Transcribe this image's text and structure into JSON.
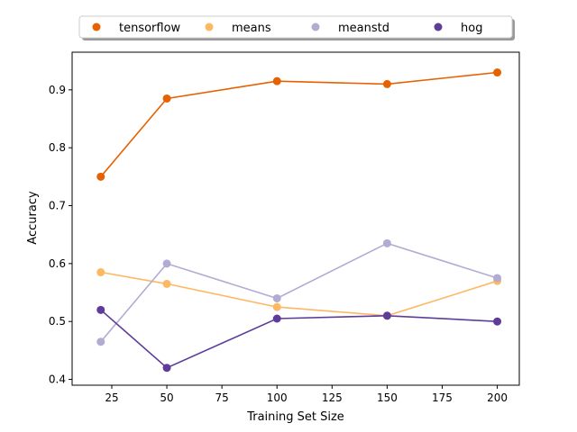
{
  "chart_data": {
    "type": "line",
    "xlabel": "Training Set Size",
    "ylabel": "Accuracy",
    "x": [
      20,
      50,
      100,
      150,
      200
    ],
    "xlim": [
      7,
      210
    ],
    "ylim": [
      0.39,
      0.965
    ],
    "xticks": [
      25,
      50,
      75,
      100,
      125,
      150,
      175,
      200
    ],
    "yticks": [
      0.4,
      0.5,
      0.6,
      0.7,
      0.8,
      0.9
    ],
    "grid": false,
    "legend_position": "top",
    "series": [
      {
        "name": "tensorflow",
        "color": "#e66101",
        "values": [
          0.75,
          0.885,
          0.915,
          0.91,
          0.93
        ]
      },
      {
        "name": "means",
        "color": "#fdb863",
        "values": [
          0.585,
          0.565,
          0.525,
          0.51,
          0.57
        ]
      },
      {
        "name": "meanstd",
        "color": "#b2abd2",
        "values": [
          0.465,
          0.6,
          0.54,
          0.635,
          0.575
        ]
      },
      {
        "name": "hog",
        "color": "#5e3c99",
        "values": [
          0.52,
          0.42,
          0.505,
          0.51,
          0.5
        ]
      }
    ]
  }
}
